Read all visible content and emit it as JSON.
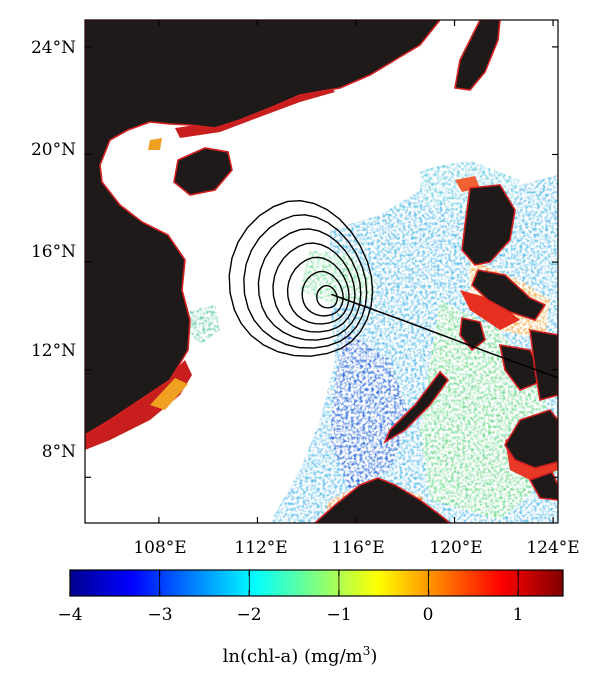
{
  "map": {
    "lon_range": [
      105,
      124.2
    ],
    "lat_range": [
      6.3,
      25
    ],
    "lon_ticks": [
      {
        "value": 108,
        "label": "108°E"
      },
      {
        "value": 112,
        "label": "112°E"
      },
      {
        "value": 116,
        "label": "116°E"
      },
      {
        "value": 120,
        "label": "120°E"
      },
      {
        "value": 124,
        "label": "124°E"
      }
    ],
    "lat_ticks": [
      {
        "value": 24,
        "label": "24°N"
      },
      {
        "value": 20,
        "label": "20°N"
      },
      {
        "value": 16,
        "label": "16°N"
      },
      {
        "value": 12,
        "label": "12°N"
      },
      {
        "value": 8,
        "label": "8°N"
      }
    ],
    "land_color": "#1f1a1a",
    "coast_color": "#d42020",
    "track_color": "#000000",
    "contour_color": "#000000",
    "storm_track": [
      [
        115.0,
        14.8
      ],
      [
        118.0,
        13.8
      ],
      [
        121.5,
        12.6
      ],
      [
        124.2,
        11.7
      ]
    ],
    "contour_center": [
      115.0,
      14.6
    ]
  },
  "colorbar": {
    "title_main": "ln(chl-a) (mg/m",
    "title_sup": "3",
    "title_end": ")",
    "range": [
      -4,
      1.5
    ],
    "ticks": [
      {
        "value": -4,
        "label": "−4"
      },
      {
        "value": -3,
        "label": "−3"
      },
      {
        "value": -2,
        "label": "−2"
      },
      {
        "value": -1,
        "label": "−1"
      },
      {
        "value": 0,
        "label": "0"
      },
      {
        "value": 1,
        "label": "1"
      }
    ],
    "colormap": [
      "#00008f",
      "#0000ff",
      "#0080ff",
      "#00ffff",
      "#80ff80",
      "#ffff00",
      "#ff8000",
      "#ff0000",
      "#800000"
    ]
  }
}
